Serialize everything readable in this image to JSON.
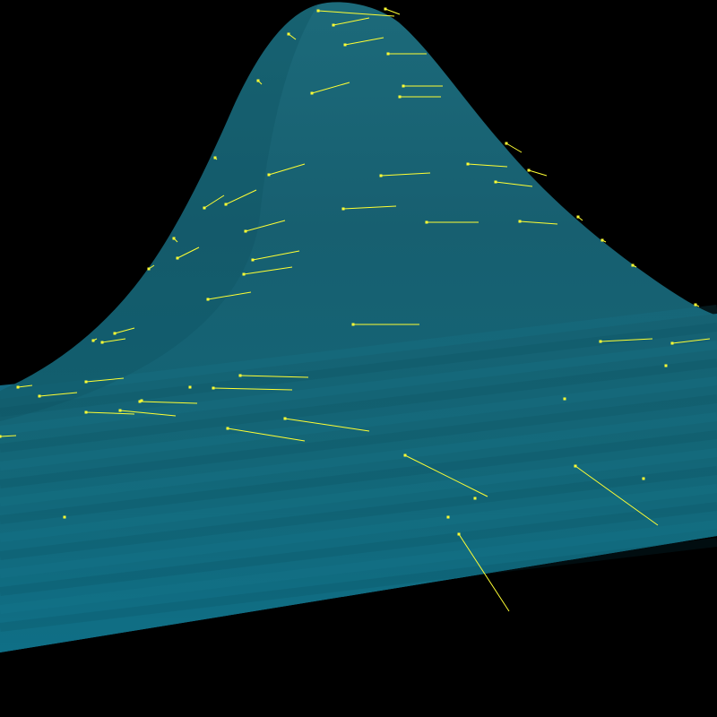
{
  "scene": {
    "background_color": "#000000",
    "surface_color_peak": "#1a6e80",
    "surface_color_base": "#127a96",
    "surface_color_shadow": "#0f5866",
    "vector_color": "#ffff33",
    "vector_count": 62
  }
}
